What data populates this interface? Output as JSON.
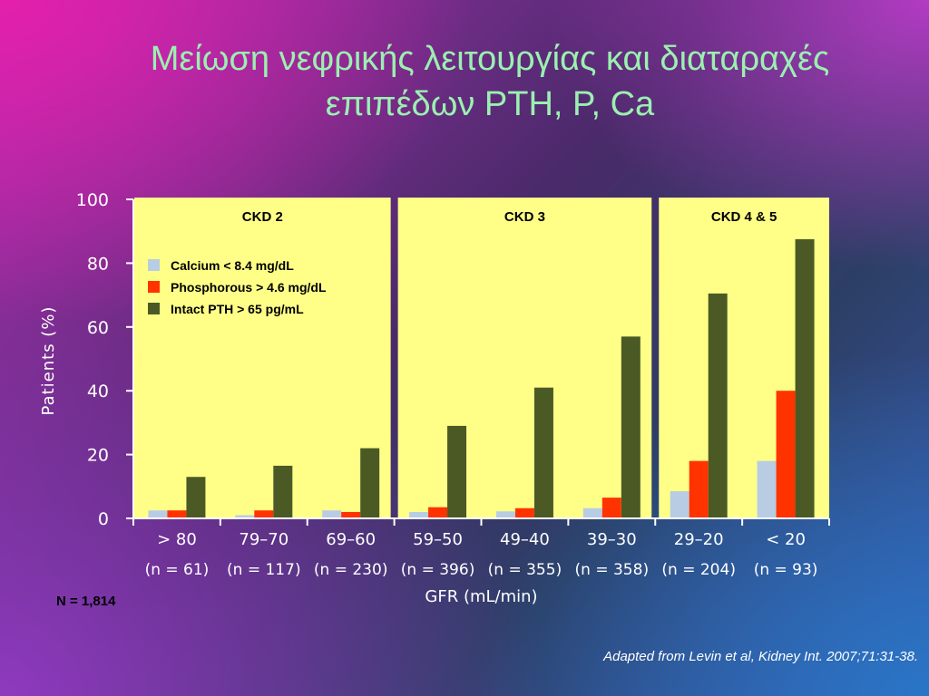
{
  "title_line1": "Μείωση νεφρικής λειτουργίας και διαταραχές",
  "title_line2": "επιπέδων PTH, P, Ca",
  "total_n": "N = 1,814",
  "source": "Adapted from Levin et al, Kidney Int. 2007;71:31-38.",
  "colors": {
    "panel": "#ffff88",
    "calcium": "#b8cce4",
    "phosphorous": "#ff3300",
    "pth": "#4b5a25"
  },
  "chart_data": {
    "type": "bar",
    "title": "",
    "xlabel": "GFR (mL/min)",
    "ylabel": "Patients (%)",
    "ylim": [
      0,
      100
    ],
    "yticks": [
      "0",
      "20",
      "40",
      "60",
      "80",
      "100"
    ],
    "grid": false,
    "legend_placement": "top-left",
    "categories": [
      "> 80",
      "79–70",
      "69–60",
      "59–50",
      "49–40",
      "39–30",
      "29–20",
      "< 20"
    ],
    "category_counts": [
      "(n = 61)",
      "(n = 117)",
      "(n = 230)",
      "(n = 396)",
      "(n = 355)",
      "(n = 358)",
      "(n = 204)",
      "(n = 93)"
    ],
    "stages": [
      {
        "label": "CKD 2",
        "categories": [
          0,
          1,
          2
        ]
      },
      {
        "label": "CKD 3",
        "categories": [
          3,
          4,
          5
        ]
      },
      {
        "label": "CKD 4 & 5",
        "categories": [
          6,
          7
        ]
      }
    ],
    "series": [
      {
        "name": "Calcium < 8.4 mg/dL",
        "values": [
          2.5,
          1,
          2.5,
          2,
          2.2,
          3.2,
          8.5,
          18
        ]
      },
      {
        "name": "Phosphorous > 4.6 mg/dL",
        "values": [
          2.5,
          2.5,
          2,
          3.5,
          3.2,
          6.5,
          18,
          40
        ]
      },
      {
        "name": "Intact PTH > 65 pg/mL",
        "values": [
          13,
          16.5,
          22,
          29,
          41,
          57,
          70.5,
          87.5
        ]
      }
    ]
  }
}
